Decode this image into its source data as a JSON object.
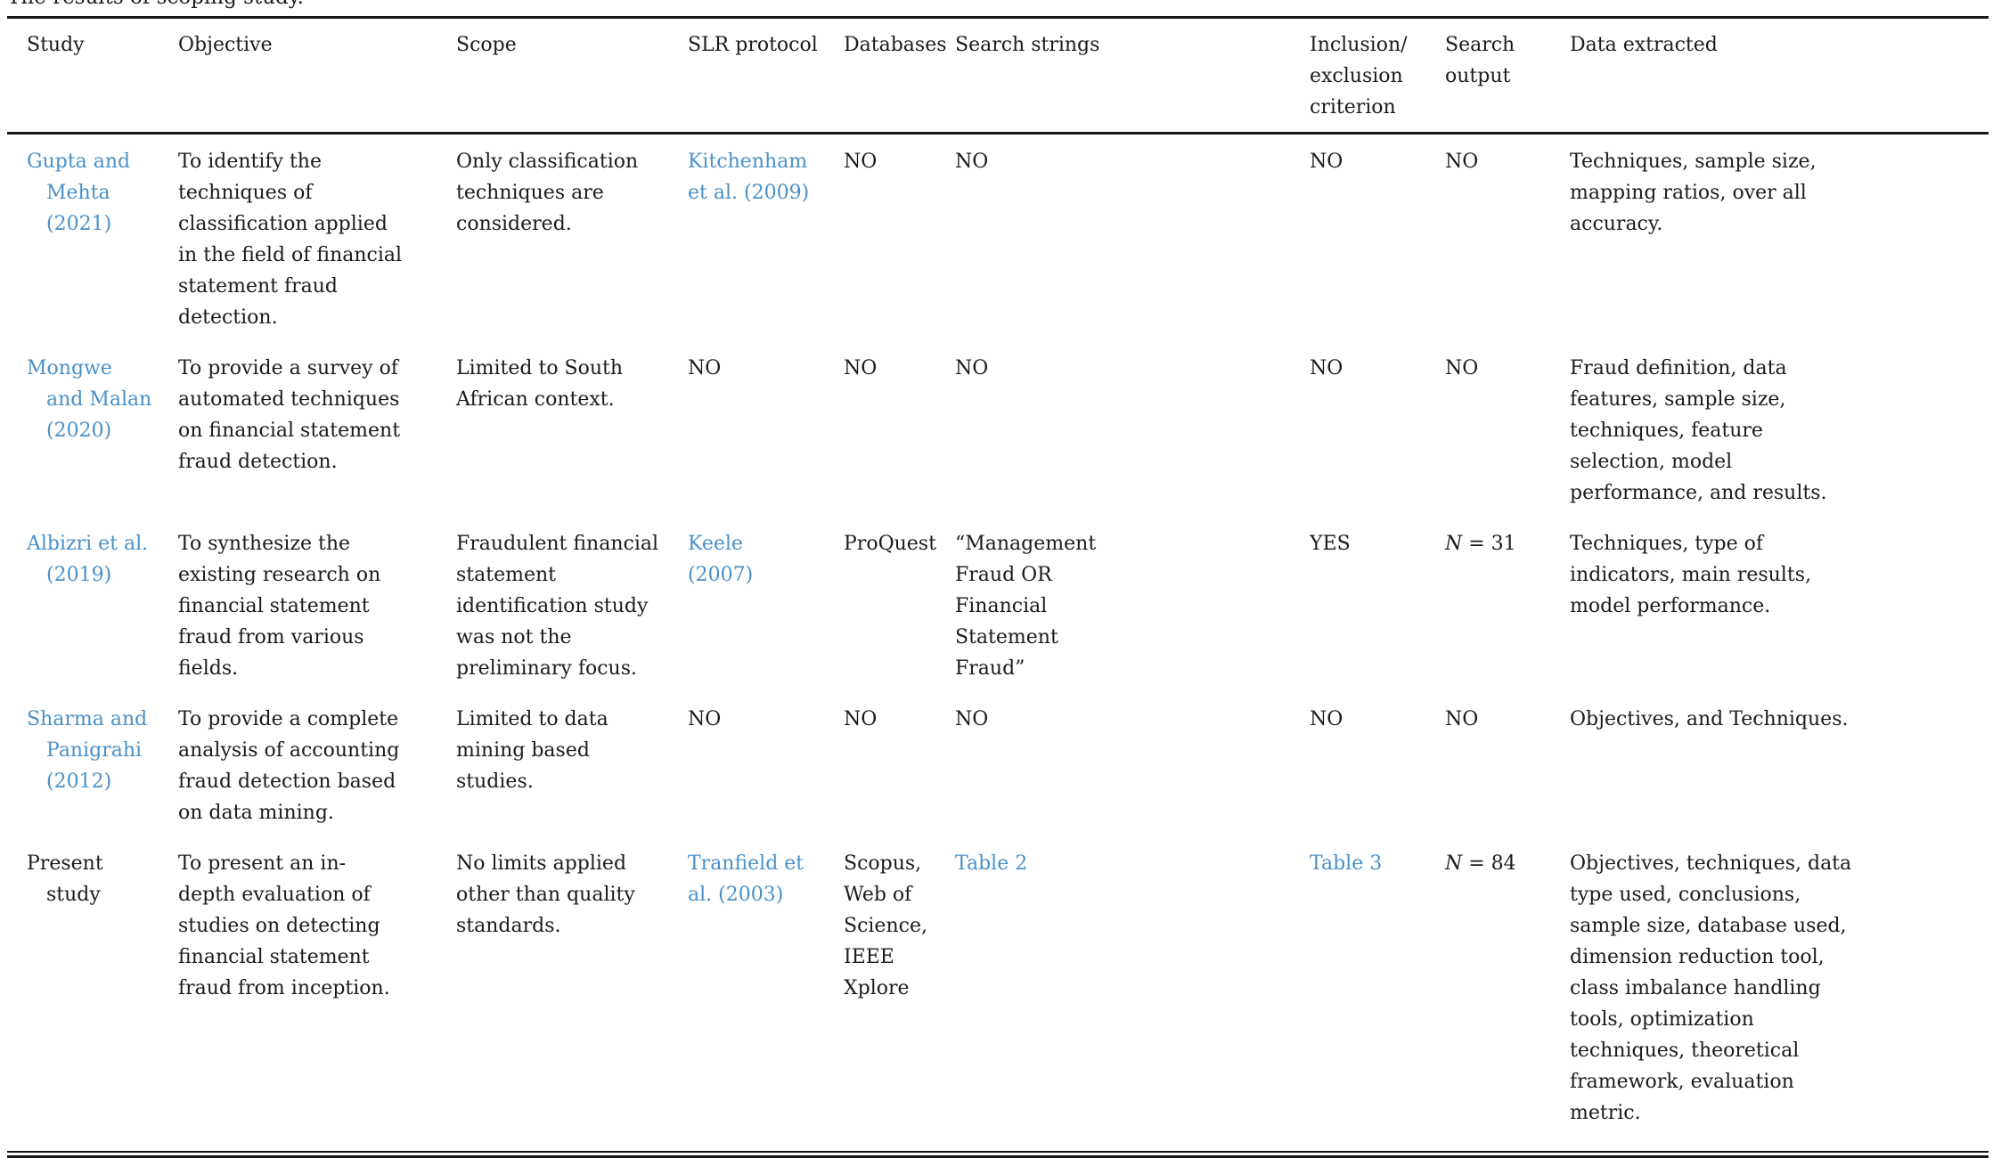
{
  "caption": "The results of scoping study.",
  "colors": {
    "link": "#4a90c8",
    "text": "#1b1b1b",
    "rule": "#161616"
  },
  "table": {
    "columns": [
      {
        "key": "study",
        "label": "Study"
      },
      {
        "key": "objective",
        "label": "Objective"
      },
      {
        "key": "scope",
        "label": "Scope"
      },
      {
        "key": "slr_protocol",
        "label": "SLR protocol"
      },
      {
        "key": "databases",
        "label": "Databases"
      },
      {
        "key": "search_strings",
        "label": "Search strings"
      },
      {
        "key": "inclusion_exclusion",
        "label": "Inclusion/​exclusion criterion"
      },
      {
        "key": "search_output",
        "label": "Search output"
      },
      {
        "key": "data_extracted",
        "label": "Data extracted"
      }
    ],
    "rows": [
      {
        "study": {
          "text": "Gupta and Mehta (2021)",
          "link": true
        },
        "objective": {
          "text": "To identify the techniques of classification applied in the field of financial statement fraud detection."
        },
        "scope": {
          "text": "Only classification techniques are considered."
        },
        "slr_protocol": {
          "text": "Kitchenham et al. (2009)",
          "link": true
        },
        "databases": {
          "text": "NO"
        },
        "search_strings": {
          "text": "NO"
        },
        "inclusion_exclusion": {
          "text": "NO"
        },
        "search_output": {
          "text": "NO"
        },
        "data_extracted": {
          "text": "Techniques, sample size, mapping ratios, over all accuracy."
        }
      },
      {
        "study": {
          "text": "Mongwe and Malan (2020)",
          "link": true
        },
        "objective": {
          "text": "To provide a survey of automated techniques on financial statement fraud detection."
        },
        "scope": {
          "text": "Limited to South African context."
        },
        "slr_protocol": {
          "text": "NO"
        },
        "databases": {
          "text": "NO"
        },
        "search_strings": {
          "text": "NO"
        },
        "inclusion_exclusion": {
          "text": "NO"
        },
        "search_output": {
          "text": "NO"
        },
        "data_extracted": {
          "text": "Fraud definition, data features, sample size, techniques, feature selection, model performance, and results."
        }
      },
      {
        "study": {
          "text": "Albizri et al. (2019)",
          "link": true
        },
        "objective": {
          "text": "To synthesize the existing research on financial statement fraud from various fields."
        },
        "scope": {
          "text": "Fraudulent financial statement identification study was not the preliminary focus."
        },
        "slr_protocol": {
          "text": "Keele (2007)",
          "link": true
        },
        "databases": {
          "text": "ProQuest"
        },
        "search_strings": {
          "text": "“Management Fraud OR Financial Statement Fraud”"
        },
        "inclusion_exclusion": {
          "text": "YES"
        },
        "search_output": {
          "text": "N = 31",
          "math": true
        },
        "data_extracted": {
          "text": "Techniques, type of indicators, main results, model performance."
        }
      },
      {
        "study": {
          "text": "Sharma and Panigrahi (2012)",
          "link": true
        },
        "objective": {
          "text": "To provide a complete analysis of accounting fraud detection based on data mining."
        },
        "scope": {
          "text": "Limited to data mining based studies."
        },
        "slr_protocol": {
          "text": "NO"
        },
        "databases": {
          "text": "NO"
        },
        "search_strings": {
          "text": "NO"
        },
        "inclusion_exclusion": {
          "text": "NO"
        },
        "search_output": {
          "text": "NO"
        },
        "data_extracted": {
          "text": "Objectives, and Techniques."
        }
      },
      {
        "study": {
          "text": "Present study",
          "link": false
        },
        "objective": {
          "text": "To present an in-depth evaluation of studies on detecting financial statement fraud from inception."
        },
        "scope": {
          "text": "No limits applied other than quality standards."
        },
        "slr_protocol": {
          "text": "Tranfield et al. (2003)",
          "link": true
        },
        "databases": {
          "text": "Scopus, Web of Science, IEEE Xplore"
        },
        "search_strings": {
          "text": "Table 2",
          "link": true
        },
        "inclusion_exclusion": {
          "text": "Table 3",
          "link": true
        },
        "search_output": {
          "text": "N = 84",
          "math": true
        },
        "data_extracted": {
          "text": "Objectives, techniques, data type used, conclusions, sample size, database used, dimension reduction tool, class imbalance handling tools, optimization techniques, theoretical framework, evaluation metric."
        }
      }
    ]
  }
}
